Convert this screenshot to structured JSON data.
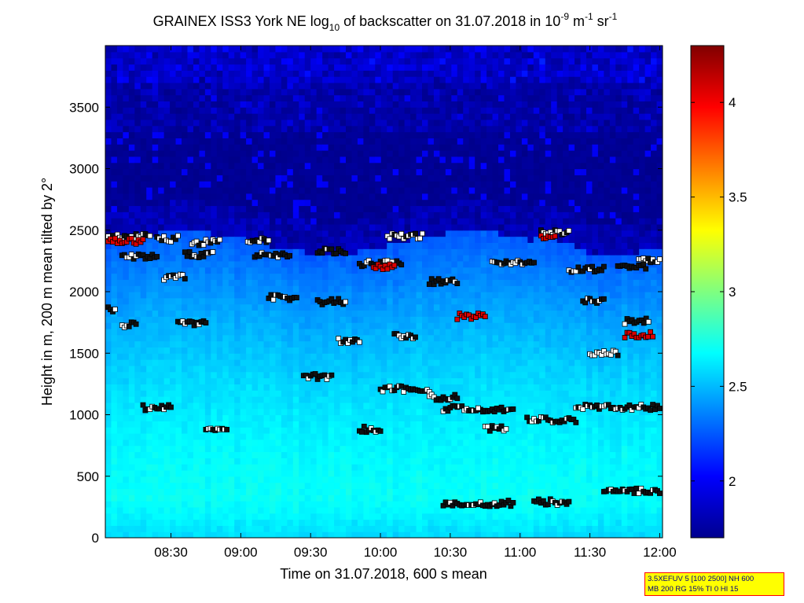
{
  "chart_data": {
    "type": "heatmap",
    "title": {
      "text": "GRAINEX ISS3 York NE log",
      "log_base": "10",
      "middle": " of backscatter on 31.07.2018 in 10",
      "exp1": "-9",
      "unit_m": " m",
      "exp2": "-1",
      "unit_sr": " sr",
      "exp3": "-1"
    },
    "xlabel": "Time on 31.07.2018, 600 s mean",
    "ylabel": "Height in m, 200 m mean tilted by 2°",
    "x_ticks": [
      "08:30",
      "09:00",
      "09:30",
      "10:00",
      "10:30",
      "11:00",
      "11:30",
      "12:00"
    ],
    "x_tick_hours": [
      8.5,
      9.0,
      9.5,
      10.0,
      10.5,
      11.0,
      11.5,
      12.0
    ],
    "xlim_hours": [
      8.03,
      12.02
    ],
    "y_ticks": [
      0,
      500,
      1000,
      1500,
      2000,
      2500,
      3000,
      3500
    ],
    "ylim": [
      0,
      4000
    ],
    "colorbar": {
      "ticks": [
        "2",
        "2.5",
        "3",
        "3.5",
        "4"
      ],
      "tick_values": [
        2,
        2.5,
        3,
        3.5,
        4
      ],
      "range": [
        1.7,
        4.3
      ],
      "colormap": "jet"
    },
    "field_description": {
      "surface_layer_log10": 2.75,
      "boundary_layer_top_m": 2400,
      "free_troposphere_log10": 1.75
    },
    "cloud_layers": [
      {
        "segments": [
          [
            8.05,
            8.35,
            2450
          ],
          [
            8.4,
            8.55,
            2430
          ],
          [
            8.65,
            8.85,
            2400
          ],
          [
            9.05,
            9.2,
            2420
          ],
          [
            10.05,
            10.3,
            2450
          ],
          [
            11.15,
            11.35,
            2480
          ],
          [
            11.85,
            12.0,
            2250
          ]
        ],
        "color": "white"
      },
      {
        "segments": [
          [
            8.15,
            8.4,
            2280
          ],
          [
            8.6,
            8.8,
            2300
          ],
          [
            9.1,
            9.35,
            2300
          ],
          [
            9.55,
            9.75,
            2330
          ],
          [
            9.85,
            10.15,
            2230
          ],
          [
            10.35,
            10.55,
            2080
          ],
          [
            10.8,
            11.1,
            2230
          ],
          [
            11.35,
            11.6,
            2180
          ],
          [
            11.7,
            11.9,
            2210
          ]
        ],
        "color": "black"
      },
      {
        "segments": [
          [
            8.05,
            8.1,
            1850
          ],
          [
            8.15,
            8.25,
            1730
          ],
          [
            8.55,
            8.75,
            1750
          ],
          [
            9.2,
            9.4,
            1950
          ],
          [
            9.55,
            9.75,
            1920
          ],
          [
            11.45,
            11.6,
            1920
          ],
          [
            11.75,
            11.92,
            1760
          ]
        ],
        "color": "black"
      },
      {
        "segments": [
          [
            8.45,
            8.6,
            2120
          ],
          [
            9.7,
            9.85,
            1600
          ],
          [
            10.1,
            10.25,
            1640
          ],
          [
            11.5,
            11.7,
            1500
          ]
        ],
        "color": "white"
      },
      {
        "segments": [
          [
            9.45,
            9.65,
            1310
          ],
          [
            10.0,
            10.35,
            1210
          ],
          [
            10.35,
            10.55,
            1140
          ],
          [
            10.7,
            10.95,
            1040
          ]
        ],
        "color": "black"
      },
      {
        "segments": [
          [
            8.3,
            8.5,
            1060
          ],
          [
            10.45,
            10.7,
            1050
          ],
          [
            10.75,
            10.9,
            890
          ],
          [
            11.05,
            11.4,
            960
          ],
          [
            11.4,
            12.0,
            1060
          ]
        ],
        "color": "black"
      },
      {
        "segments": [
          [
            8.75,
            8.9,
            870
          ],
          [
            9.85,
            10.0,
            880
          ]
        ],
        "color": "black"
      },
      {
        "segments": [
          [
            10.45,
            10.95,
            280
          ],
          [
            11.1,
            11.35,
            290
          ],
          [
            11.6,
            12.0,
            380
          ]
        ],
        "color": "black"
      },
      {
        "segments": [
          [
            10.55,
            10.75,
            1800
          ],
          [
            8.05,
            8.3,
            2410
          ],
          [
            9.95,
            10.1,
            2200
          ],
          [
            11.15,
            11.25,
            2440
          ],
          [
            11.75,
            11.95,
            1650
          ]
        ],
        "color": "red"
      }
    ]
  },
  "info_box": {
    "line1": "3.5XEFUV 5 [100 2500] NH 600",
    "line2": "MB 200 RG 15% TI 0 HI 15"
  }
}
